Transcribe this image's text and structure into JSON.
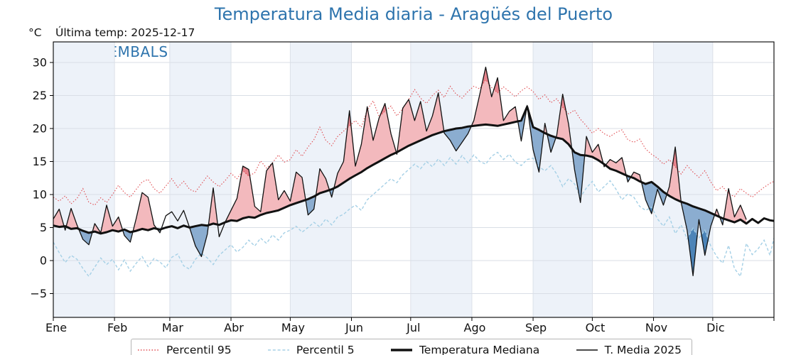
{
  "title": {
    "text": "Temperatura Media diaria - Aragüés del Puerto"
  },
  "header": {
    "unit_label": "°C",
    "last_temp_label": "Última temp: 2025-12-17"
  },
  "watermark": {
    "text": "WWW.EMBALSES.NET"
  },
  "colors": {
    "accent": "#2e74ad",
    "p95": "#e04b50",
    "p5": "#a5d0e6",
    "line": "#111111",
    "fill_above": "#f3b9bd",
    "fill_above_extreme": "#e6848d",
    "fill_below": "#8badd0",
    "fill_below_extreme": "#4c84b8",
    "band": "#edf2f9",
    "grid": "#d9dee6"
  },
  "chart_data": {
    "type": "line",
    "title": "Temperatura Media diaria - Aragüés del Puerto",
    "xlabel": "",
    "ylabel": "°C",
    "grid": true,
    "xlim_days": [
      0,
      365
    ],
    "ylim": [
      -8.6,
      33.1
    ],
    "y_ticks": [
      30,
      25,
      20,
      15,
      10,
      5,
      0,
      -5
    ],
    "y_tick_labels": [
      "30",
      "25",
      "20",
      "15",
      "10",
      "5",
      "0",
      "−5"
    ],
    "x_tick_labels": [
      "Ene",
      "Feb",
      "Mar",
      "Abr",
      "May",
      "Jun",
      "Jul",
      "Ago",
      "Sep",
      "Oct",
      "Nov",
      "Dic"
    ],
    "month_start_days": [
      0,
      31,
      59,
      90,
      120,
      151,
      181,
      212,
      243,
      273,
      304,
      334
    ],
    "shaded_month_indexes": [
      0,
      2,
      4,
      6,
      8,
      10
    ],
    "legend_position": "bottom",
    "days": [
      0,
      3,
      6,
      9,
      12,
      15,
      18,
      21,
      24,
      27,
      30,
      33,
      36,
      39,
      42,
      45,
      48,
      51,
      54,
      57,
      60,
      63,
      66,
      69,
      72,
      75,
      78,
      81,
      84,
      87,
      90,
      93,
      96,
      99,
      102,
      105,
      108,
      111,
      114,
      117,
      120,
      123,
      126,
      129,
      132,
      135,
      138,
      141,
      144,
      147,
      150,
      153,
      156,
      159,
      162,
      165,
      168,
      171,
      174,
      177,
      180,
      183,
      186,
      189,
      192,
      195,
      198,
      201,
      204,
      207,
      210,
      213,
      216,
      219,
      222,
      225,
      228,
      231,
      234,
      237,
      240,
      243,
      246,
      249,
      252,
      255,
      258,
      261,
      264,
      267,
      270,
      273,
      276,
      279,
      282,
      285,
      288,
      291,
      294,
      297,
      300,
      303,
      306,
      309,
      312,
      315,
      318,
      321,
      324,
      327,
      330,
      333,
      336,
      339,
      342,
      345,
      348,
      351,
      354,
      357,
      360,
      363,
      365
    ],
    "series": [
      {
        "name": "Percentil 95",
        "style": "dotted",
        "values": [
          9.6,
          9.0,
          9.8,
          8.6,
          9.4,
          10.9,
          8.8,
          8.4,
          9.5,
          8.8,
          10.0,
          11.4,
          10.3,
          9.6,
          10.8,
          11.9,
          12.3,
          10.9,
          10.2,
          11.3,
          12.4,
          11.1,
          12.0,
          10.8,
          10.4,
          11.6,
          12.8,
          11.9,
          11.2,
          12.1,
          13.2,
          12.4,
          13.6,
          12.8,
          13.3,
          15.1,
          14.0,
          14.8,
          16.0,
          14.9,
          15.3,
          16.8,
          15.8,
          17.2,
          18.3,
          20.2,
          18.2,
          17.4,
          18.8,
          19.6,
          20.4,
          21.2,
          20.2,
          22.8,
          24.2,
          21.8,
          22.6,
          23.4,
          21.9,
          23.0,
          24.4,
          25.9,
          24.6,
          23.8,
          25.0,
          25.8,
          24.7,
          26.4,
          25.2,
          24.6,
          25.6,
          26.4,
          26.0,
          27.4,
          26.2,
          25.4,
          26.3,
          25.6,
          24.8,
          25.7,
          26.3,
          25.6,
          24.4,
          25.1,
          23.9,
          24.5,
          23.2,
          22.2,
          22.8,
          21.4,
          20.4,
          19.3,
          20.0,
          19.2,
          18.8,
          19.4,
          19.8,
          18.3,
          17.9,
          18.4,
          16.9,
          16.1,
          15.5,
          14.6,
          15.3,
          14.2,
          13.1,
          14.4,
          13.4,
          12.6,
          13.6,
          11.9,
          10.6,
          11.2,
          10.1,
          9.7,
          10.9,
          10.2,
          9.6,
          10.4,
          11.1,
          11.7,
          12.0
        ]
      },
      {
        "name": "Percentil 5",
        "style": "dashed",
        "values": [
          2.8,
          1.2,
          -0.3,
          0.8,
          0.2,
          -1.2,
          -2.4,
          -1.0,
          0.4,
          -0.6,
          0.2,
          -1.4,
          0.1,
          -1.6,
          -0.4,
          0.6,
          -0.9,
          0.3,
          -0.2,
          -1.1,
          0.5,
          1.0,
          -0.8,
          -1.3,
          0.2,
          1.1,
          0.4,
          -0.6,
          0.8,
          1.6,
          2.4,
          1.3,
          2.0,
          3.1,
          2.2,
          3.4,
          2.6,
          3.9,
          3.1,
          4.2,
          4.6,
          5.2,
          4.3,
          5.0,
          5.8,
          5.1,
          6.3,
          5.4,
          6.6,
          7.0,
          7.8,
          8.4,
          7.6,
          9.2,
          10.0,
          10.8,
          11.6,
          12.4,
          11.8,
          13.0,
          13.8,
          14.6,
          13.9,
          15.0,
          14.2,
          15.4,
          14.4,
          15.6,
          14.6,
          15.9,
          14.8,
          16.0,
          15.0,
          14.6,
          15.8,
          16.4,
          15.3,
          16.1,
          14.9,
          14.4,
          15.3,
          15.5,
          14.2,
          13.6,
          14.4,
          13.1,
          11.2,
          12.4,
          11.6,
          9.6,
          11.0,
          12.0,
          10.4,
          11.2,
          12.1,
          10.8,
          9.2,
          10.1,
          9.6,
          8.2,
          7.6,
          8.1,
          6.3,
          5.2,
          6.6,
          4.1,
          5.4,
          3.3,
          4.9,
          3.4,
          4.6,
          2.2,
          0.6,
          -0.4,
          2.3,
          -1.2,
          -2.4,
          2.6,
          0.9,
          1.8,
          3.1,
          0.8,
          3.4
        ]
      },
      {
        "name": "Temperatura Mediana",
        "style": "solid-thick",
        "values": [
          5.3,
          5.1,
          5.2,
          4.8,
          4.9,
          4.5,
          4.2,
          4.4,
          4.1,
          4.3,
          4.6,
          4.4,
          4.7,
          4.3,
          4.5,
          4.8,
          4.6,
          4.9,
          4.7,
          5.0,
          5.2,
          4.9,
          5.3,
          5.0,
          5.2,
          5.4,
          5.3,
          5.6,
          5.4,
          5.8,
          6.1,
          6.0,
          6.4,
          6.6,
          6.5,
          6.9,
          7.2,
          7.4,
          7.6,
          8.0,
          8.4,
          8.7,
          9.0,
          9.3,
          9.7,
          10.2,
          10.5,
          10.8,
          11.2,
          11.8,
          12.4,
          12.9,
          13.4,
          14.0,
          14.5,
          15.0,
          15.5,
          16.0,
          16.4,
          16.9,
          17.4,
          17.8,
          18.2,
          18.6,
          19.0,
          19.3,
          19.6,
          19.8,
          20.0,
          20.1,
          20.3,
          20.4,
          20.5,
          20.6,
          20.5,
          20.4,
          20.6,
          20.8,
          21.0,
          21.2,
          23.3,
          20.2,
          19.8,
          19.3,
          18.9,
          18.6,
          18.4,
          17.6,
          16.4,
          16.0,
          15.9,
          15.7,
          15.2,
          14.6,
          13.9,
          13.6,
          13.2,
          12.8,
          12.5,
          12.0,
          11.6,
          11.9,
          11.2,
          10.4,
          9.8,
          9.3,
          8.9,
          8.6,
          8.2,
          7.9,
          7.6,
          7.2,
          6.8,
          6.4,
          6.1,
          5.8,
          6.2,
          5.6,
          6.3,
          5.7,
          6.4,
          6.1,
          6.0
        ]
      },
      {
        "name": "T. Media 2025",
        "style": "solid-thin",
        "values": [
          6.3,
          7.8,
          4.6,
          7.9,
          5.4,
          3.2,
          2.4,
          5.6,
          4.2,
          8.4,
          5.2,
          6.6,
          3.8,
          2.8,
          6.4,
          10.3,
          9.6,
          5.4,
          4.2,
          6.8,
          7.4,
          6.0,
          7.6,
          5.0,
          2.2,
          0.6,
          4.0,
          11.0,
          3.6,
          5.8,
          7.6,
          9.4,
          14.3,
          13.8,
          8.2,
          7.4,
          13.6,
          14.8,
          9.2,
          10.6,
          9.0,
          13.4,
          12.6,
          6.9,
          7.8,
          13.9,
          12.4,
          9.6,
          13.2,
          15.0,
          22.7,
          14.3,
          17.6,
          23.3,
          18.2,
          21.6,
          23.8,
          19.2,
          16.1,
          23.1,
          24.4,
          21.2,
          24.1,
          19.6,
          21.9,
          25.4,
          19.3,
          18.2,
          16.6,
          17.9,
          19.2,
          21.2,
          25.2,
          29.3,
          24.8,
          27.7,
          21.2,
          22.6,
          23.3,
          18.1,
          23.5,
          16.8,
          13.4,
          20.8,
          16.4,
          19.0,
          25.2,
          20.6,
          13.8,
          8.8,
          18.8,
          16.4,
          17.6,
          14.2,
          15.3,
          14.8,
          15.6,
          11.9,
          13.4,
          13.0,
          9.2,
          7.1,
          10.8,
          8.4,
          11.2,
          17.2,
          8.8,
          4.6,
          -2.3,
          6.2,
          0.8,
          5.2,
          7.8,
          5.4,
          10.9,
          6.6,
          8.4,
          6.2,
          null,
          null,
          null,
          null,
          null
        ]
      }
    ]
  }
}
